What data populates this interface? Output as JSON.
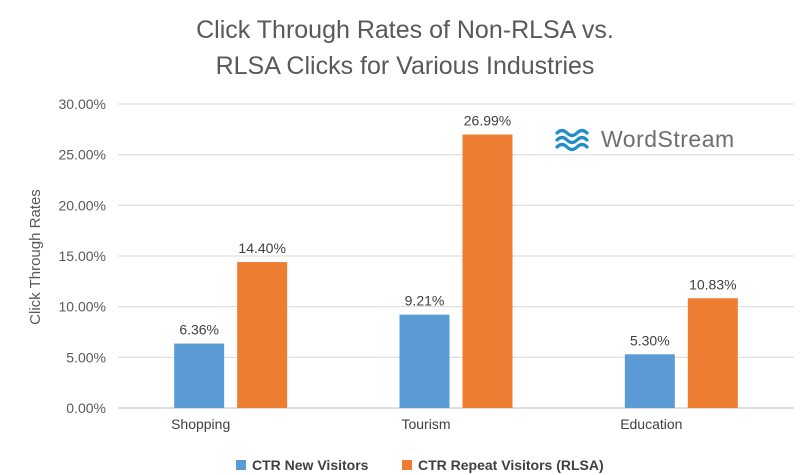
{
  "logo": {
    "text": "WordStream",
    "color": "#1f8dc9"
  },
  "chart_data": {
    "type": "bar",
    "title_lines": [
      "Click Through Rates of Non-RLSA vs.",
      "RLSA Clicks for Various Industries"
    ],
    "xlabel": "",
    "ylabel": "Click Through Rates",
    "categories": [
      "Shopping",
      "Tourism",
      "Education"
    ],
    "series": [
      {
        "name": "CTR New Visitors",
        "color": "#5b9bd5",
        "values": [
          6.36,
          9.21,
          5.3
        ],
        "labels": [
          "6.36%",
          "9.21%",
          "5.30%"
        ]
      },
      {
        "name": "CTR Repeat Visitors (RLSA)",
        "color": "#ed7d31",
        "values": [
          14.4,
          26.99,
          10.83
        ],
        "labels": [
          "14.40%",
          "26.99%",
          "10.83%"
        ]
      }
    ],
    "ylim": [
      0,
      30
    ],
    "yticks": [
      0,
      5,
      10,
      15,
      20,
      25,
      30
    ],
    "ytick_labels": [
      "0.00%",
      "5.00%",
      "10.00%",
      "15.00%",
      "20.00%",
      "25.00%",
      "30.00%"
    ],
    "grid": true,
    "legend_position": "bottom"
  }
}
